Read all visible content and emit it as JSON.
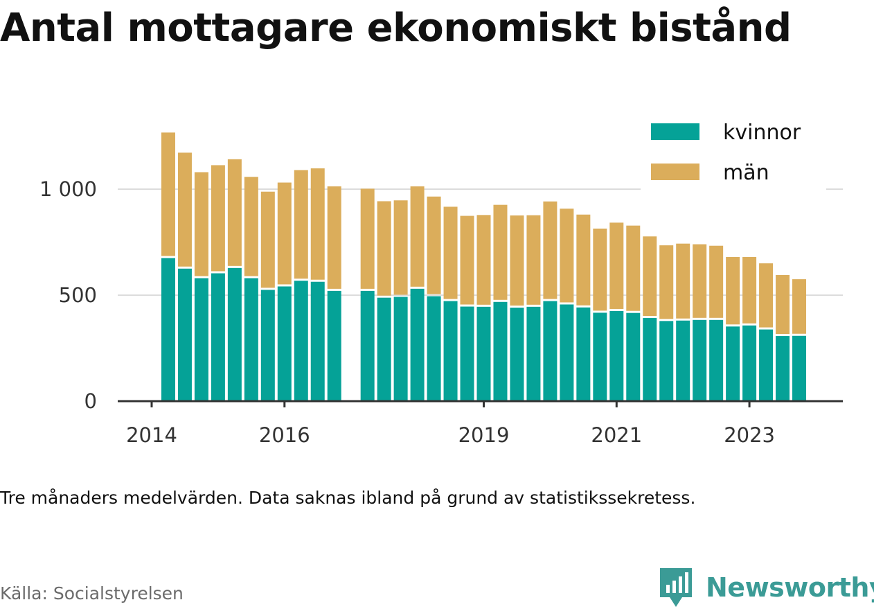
{
  "title": "Antal mottagare ekonomiskt bistånd",
  "note": "Tre månaders medelvärden. Data saknas ibland på grund av statistikssekretess.",
  "source": "Källa: Socialstyrelsen",
  "brand": {
    "name": "Newsworthy",
    "icon": "newsworthy-logo-icon",
    "color": "#3b9b96"
  },
  "chart_data": {
    "type": "bar",
    "stacked": true,
    "title": "Antal mottagare ekonomiskt bistånd",
    "xlabel": "",
    "ylabel": "",
    "ylim": [
      0,
      1300
    ],
    "yticks": [
      0,
      500,
      1000
    ],
    "ytick_labels": [
      "0",
      "500",
      "1 000"
    ],
    "xlim": [
      2013.6,
      2024.5
    ],
    "xticks": [
      2014,
      2016,
      2019,
      2021,
      2023
    ],
    "xtick_labels": [
      "2014",
      "2016",
      "2019",
      "2021",
      "2023"
    ],
    "grid": true,
    "legend_position": "top-right",
    "x": [
      2014.25,
      2014.5,
      2014.75,
      2015.0,
      2015.25,
      2015.5,
      2015.75,
      2016.0,
      2016.25,
      2016.5,
      2016.75,
      2017.25,
      2017.5,
      2017.75,
      2018.0,
      2018.25,
      2018.5,
      2018.75,
      2019.0,
      2019.25,
      2019.5,
      2019.75,
      2020.0,
      2020.25,
      2020.5,
      2020.75,
      2021.0,
      2021.25,
      2021.5,
      2021.75,
      2022.0,
      2022.25,
      2022.5,
      2022.75,
      2023.0,
      2023.25,
      2023.5,
      2023.75
    ],
    "series": [
      {
        "name": "kvinnor",
        "color": "#05a297",
        "values": [
          675,
          625,
          580,
          603,
          628,
          580,
          525,
          541,
          568,
          563,
          520,
          520,
          488,
          492,
          530,
          495,
          472,
          446,
          445,
          468,
          441,
          445,
          472,
          456,
          442,
          417,
          425,
          416,
          392,
          378,
          380,
          383,
          383,
          352,
          357,
          338,
          307,
          308
        ]
      },
      {
        "name": "män",
        "color": "#dbad5b",
        "values": [
          592,
          547,
          500,
          510,
          513,
          478,
          463,
          490,
          522,
          535,
          493,
          482,
          455,
          455,
          483,
          470,
          445,
          428,
          433,
          458,
          435,
          432,
          470,
          452,
          438,
          397,
          417,
          412,
          385,
          357,
          363,
          357,
          350,
          328,
          323,
          312,
          288,
          267
        ]
      }
    ]
  }
}
